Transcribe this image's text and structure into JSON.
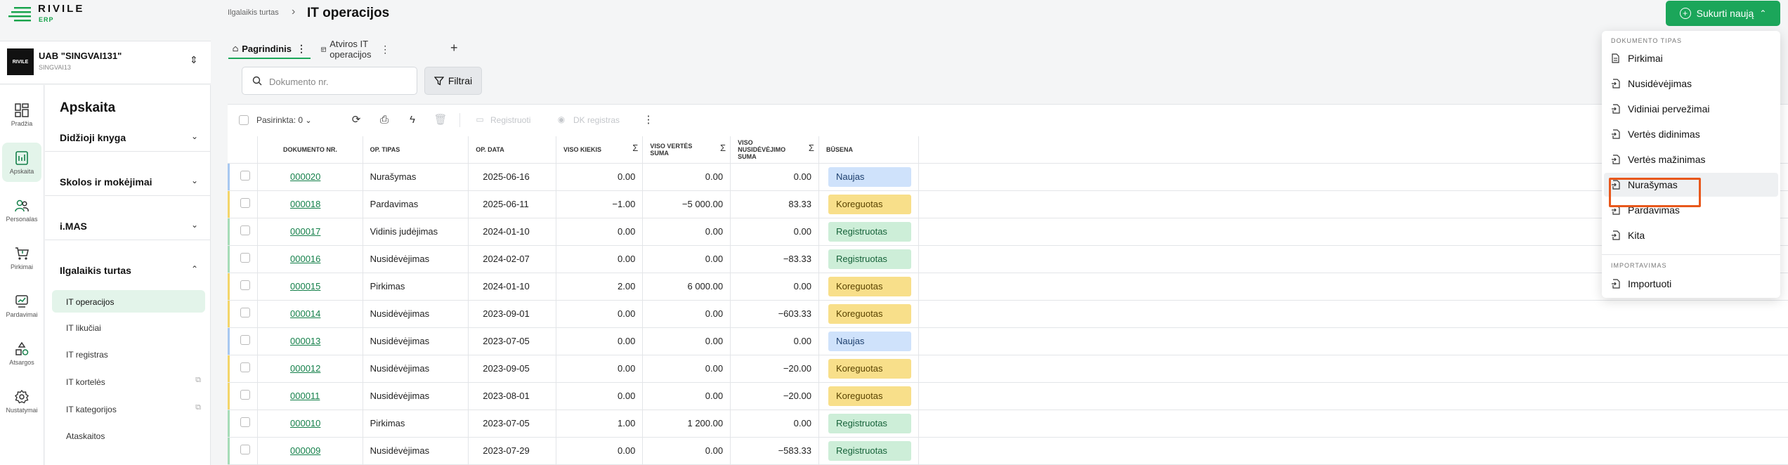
{
  "brand": {
    "name": "RIVILE",
    "sub": "ERP"
  },
  "company": {
    "logo_text": "RIVILE",
    "name": "UAB \"SINGVAI131\"",
    "code": "SINGVAI13"
  },
  "rail": [
    {
      "label": "Pradžia",
      "icon": "home-grid-icon"
    },
    {
      "label": "Apskaita",
      "icon": "calculator-icon"
    },
    {
      "label": "Personalas",
      "icon": "people-icon"
    },
    {
      "label": "Pirkimai",
      "icon": "cart-icon"
    },
    {
      "label": "Pardavimai",
      "icon": "sales-icon"
    },
    {
      "label": "Atsargos",
      "icon": "shapes-icon"
    },
    {
      "label": "Nustatymai",
      "icon": "gear-icon"
    }
  ],
  "sidebar": {
    "title": "Apskaita",
    "groups": [
      {
        "label": "Didžioji knyga"
      },
      {
        "label": "Skolos ir mokėjimai"
      },
      {
        "label": "i.MAS"
      },
      {
        "label": "Ilgalaikis turtas"
      }
    ],
    "subitems": [
      {
        "label": "IT operacijos"
      },
      {
        "label": "IT likučiai"
      },
      {
        "label": "IT registras"
      },
      {
        "label": "IT kortelės"
      },
      {
        "label": "IT kategorijos"
      },
      {
        "label": "Ataskaitos"
      }
    ]
  },
  "header": {
    "breadcrumb": "Ilgalaikis turtas",
    "title": "IT operacijos",
    "create_label": "Sukurti naują"
  },
  "tabs": [
    {
      "label": "Pagrindinis"
    },
    {
      "label": "Atviros IT operacijos"
    }
  ],
  "filters": {
    "search_placeholder": "Dokumento nr.",
    "filter_label": "Filtrai"
  },
  "toolbar": {
    "selected_label": "Pasirinkta: 0",
    "register_label": "Registruoti",
    "dk_label": "DK registras"
  },
  "table": {
    "columns": [
      "DOKUMENTO NR.",
      "OP. TIPAS",
      "OP. DATA",
      "VISO KIEKIS",
      "VISO VERTĖS SUMA",
      "VISO NUSIDĖVĖJIMO SUMA",
      "BŪSENA"
    ],
    "rows": [
      {
        "doc": "000020",
        "type": "Nurašymas",
        "date": "2025-06-16",
        "qty": "0.00",
        "value": "0.00",
        "dep": "0.00",
        "status": "Naujas"
      },
      {
        "doc": "000018",
        "type": "Pardavimas",
        "date": "2025-06-11",
        "qty": "−1.00",
        "value": "−5 000.00",
        "dep": "83.33",
        "status": "Koreguotas"
      },
      {
        "doc": "000017",
        "type": "Vidinis judėjimas",
        "date": "2024-01-10",
        "qty": "0.00",
        "value": "0.00",
        "dep": "0.00",
        "status": "Registruotas"
      },
      {
        "doc": "000016",
        "type": "Nusidėvėjimas",
        "date": "2024-02-07",
        "qty": "0.00",
        "value": "0.00",
        "dep": "−83.33",
        "status": "Registruotas"
      },
      {
        "doc": "000015",
        "type": "Pirkimas",
        "date": "2024-01-10",
        "qty": "2.00",
        "value": "6 000.00",
        "dep": "0.00",
        "status": "Koreguotas"
      },
      {
        "doc": "000014",
        "type": "Nusidėvėjimas",
        "date": "2023-09-01",
        "qty": "0.00",
        "value": "0.00",
        "dep": "−603.33",
        "status": "Koreguotas"
      },
      {
        "doc": "000013",
        "type": "Nusidėvėjimas",
        "date": "2023-07-05",
        "qty": "0.00",
        "value": "0.00",
        "dep": "0.00",
        "status": "Naujas"
      },
      {
        "doc": "000012",
        "type": "Nusidėvėjimas",
        "date": "2023-09-05",
        "qty": "0.00",
        "value": "0.00",
        "dep": "−20.00",
        "status": "Koreguotas"
      },
      {
        "doc": "000011",
        "type": "Nusidėvėjimas",
        "date": "2023-08-01",
        "qty": "0.00",
        "value": "0.00",
        "dep": "−20.00",
        "status": "Koreguotas"
      },
      {
        "doc": "000010",
        "type": "Pirkimas",
        "date": "2023-07-05",
        "qty": "1.00",
        "value": "1 200.00",
        "dep": "0.00",
        "status": "Registruotas"
      },
      {
        "doc": "000009",
        "type": "Nusidėvėjimas",
        "date": "2023-07-29",
        "qty": "0.00",
        "value": "0.00",
        "dep": "−583.33",
        "status": "Registruotas"
      }
    ]
  },
  "status_colors": {
    "Naujas": {
      "bg": "#cfe2fb",
      "fg": "#1d3f6e",
      "bar": "#a8c8f0"
    },
    "Koreguotas": {
      "bg": "#f8df8a",
      "fg": "#5a4300",
      "bar": "#f3d56a"
    },
    "Registruotas": {
      "bg": "#cdeed8",
      "fg": "#17633a",
      "bar": "#a6dcb8"
    }
  },
  "dropdown": {
    "section1": "DOKUMENTO TIPAS",
    "items": [
      {
        "label": "Pirkimai"
      },
      {
        "label": "Nusidėvėjimas"
      },
      {
        "label": "Vidiniai pervežimai"
      },
      {
        "label": "Vertės didinimas"
      },
      {
        "label": "Vertės mažinimas"
      },
      {
        "label": "Nurašymas"
      },
      {
        "label": "Pardavimas"
      },
      {
        "label": "Kita"
      }
    ],
    "section2": "IMPORTAVIMAS",
    "import_label": "Importuoti"
  },
  "colors": {
    "accent": "#1ba65a",
    "highlight": "#e8581c"
  }
}
